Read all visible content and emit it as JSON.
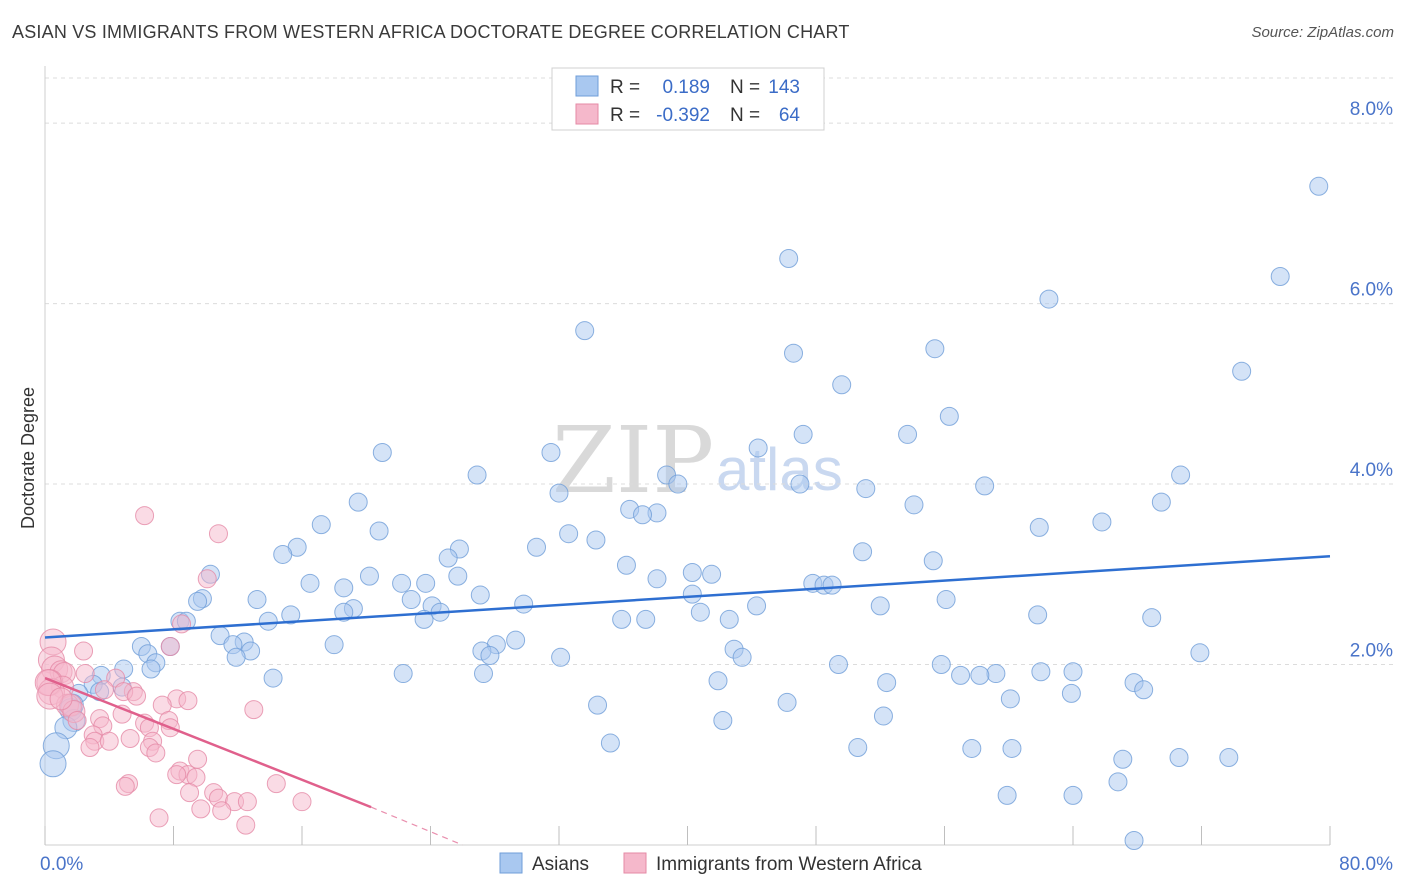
{
  "title": "ASIAN VS IMMIGRANTS FROM WESTERN AFRICA DOCTORATE DEGREE CORRELATION CHART",
  "source": "Source: ZipAtlas.com",
  "watermark": {
    "zip": "ZIP",
    "atlas": "atlas"
  },
  "chart_data": {
    "type": "scatter",
    "ylabel": "Doctorate Degree",
    "xlabel": "",
    "xlim": [
      0,
      80
    ],
    "ylim": [
      0,
      8.5
    ],
    "x_tick_labels": [
      {
        "value": 0,
        "label": "0.0%"
      },
      {
        "value": 80,
        "label": "80.0%"
      }
    ],
    "y_tick_labels": [
      {
        "value": 2,
        "label": "2.0%"
      },
      {
        "value": 4,
        "label": "4.0%"
      },
      {
        "value": 6,
        "label": "6.0%"
      },
      {
        "value": 8,
        "label": "8.0%"
      }
    ],
    "legend_top": [
      {
        "r_label": "R =",
        "r_value": "0.189",
        "n_label": "N =",
        "n_value": "143",
        "color": "#a9c8f0"
      },
      {
        "r_label": "R =",
        "r_value": "-0.392",
        "n_label": "N =",
        "n_value": "64",
        "color": "#f5b8cb"
      }
    ],
    "series": [
      {
        "name": "Asians",
        "color": "#a9c8f0",
        "stroke": "#6f9ed8",
        "trend": {
          "x": [
            0,
            80
          ],
          "y": [
            2.3,
            3.2
          ],
          "color": "#2e6fd1"
        },
        "points": [
          [
            79.3,
            7.3
          ],
          [
            76.9,
            6.3
          ],
          [
            46.3,
            6.5
          ],
          [
            62.5,
            6.05
          ],
          [
            33.6,
            5.7
          ],
          [
            46.6,
            5.45
          ],
          [
            55.4,
            5.5
          ],
          [
            74.5,
            5.25
          ],
          [
            49.6,
            5.1
          ],
          [
            56.3,
            4.75
          ],
          [
            47.2,
            4.55
          ],
          [
            53.7,
            4.55
          ],
          [
            44.4,
            4.4
          ],
          [
            21.0,
            4.35
          ],
          [
            31.5,
            4.35
          ],
          [
            26.9,
            4.1
          ],
          [
            38.7,
            4.1
          ],
          [
            39.4,
            4.0
          ],
          [
            47.0,
            4.0
          ],
          [
            51.1,
            3.95
          ],
          [
            58.5,
            3.98
          ],
          [
            32.0,
            3.9
          ],
          [
            70.7,
            4.1
          ],
          [
            19.5,
            3.8
          ],
          [
            54.1,
            3.77
          ],
          [
            69.5,
            3.8
          ],
          [
            36.4,
            3.72
          ],
          [
            38.1,
            3.68
          ],
          [
            37.2,
            3.66
          ],
          [
            17.2,
            3.55
          ],
          [
            65.8,
            3.58
          ],
          [
            20.8,
            3.48
          ],
          [
            61.9,
            3.52
          ],
          [
            32.6,
            3.45
          ],
          [
            34.3,
            3.38
          ],
          [
            15.7,
            3.3
          ],
          [
            14.8,
            3.22
          ],
          [
            25.8,
            3.28
          ],
          [
            30.6,
            3.3
          ],
          [
            50.9,
            3.25
          ],
          [
            25.1,
            3.18
          ],
          [
            36.2,
            3.1
          ],
          [
            55.3,
            3.15
          ],
          [
            10.3,
            3.0
          ],
          [
            25.7,
            2.98
          ],
          [
            40.3,
            3.02
          ],
          [
            41.5,
            3.0
          ],
          [
            38.1,
            2.95
          ],
          [
            20.2,
            2.98
          ],
          [
            22.2,
            2.9
          ],
          [
            23.7,
            2.9
          ],
          [
            16.5,
            2.9
          ],
          [
            47.8,
            2.9
          ],
          [
            48.5,
            2.88
          ],
          [
            49.0,
            2.88
          ],
          [
            18.6,
            2.85
          ],
          [
            27.1,
            2.77
          ],
          [
            9.8,
            2.73
          ],
          [
            13.2,
            2.72
          ],
          [
            22.8,
            2.72
          ],
          [
            24.1,
            2.65
          ],
          [
            40.3,
            2.78
          ],
          [
            9.5,
            2.7
          ],
          [
            29.8,
            2.67
          ],
          [
            44.3,
            2.65
          ],
          [
            56.1,
            2.72
          ],
          [
            52.0,
            2.65
          ],
          [
            19.2,
            2.62
          ],
          [
            18.6,
            2.58
          ],
          [
            15.3,
            2.55
          ],
          [
            13.9,
            2.48
          ],
          [
            23.6,
            2.5
          ],
          [
            24.6,
            2.58
          ],
          [
            40.8,
            2.58
          ],
          [
            61.8,
            2.55
          ],
          [
            68.9,
            2.52
          ],
          [
            35.9,
            2.5
          ],
          [
            37.4,
            2.5
          ],
          [
            42.6,
            2.5
          ],
          [
            8.4,
            2.48
          ],
          [
            8.8,
            2.48
          ],
          [
            10.9,
            2.32
          ],
          [
            12.4,
            2.25
          ],
          [
            11.7,
            2.22
          ],
          [
            18.0,
            2.22
          ],
          [
            29.3,
            2.27
          ],
          [
            28.1,
            2.22
          ],
          [
            6.0,
            2.2
          ],
          [
            7.8,
            2.2
          ],
          [
            27.2,
            2.15
          ],
          [
            42.9,
            2.17
          ],
          [
            12.8,
            2.15
          ],
          [
            71.9,
            2.13
          ],
          [
            6.4,
            2.12
          ],
          [
            27.7,
            2.1
          ],
          [
            11.9,
            2.08
          ],
          [
            43.4,
            2.08
          ],
          [
            32.1,
            2.08
          ],
          [
            6.9,
            2.02
          ],
          [
            49.4,
            2.0
          ],
          [
            55.8,
            2.0
          ],
          [
            4.9,
            1.95
          ],
          [
            6.6,
            1.95
          ],
          [
            22.3,
            1.9
          ],
          [
            27.3,
            1.9
          ],
          [
            59.2,
            1.9
          ],
          [
            62.0,
            1.92
          ],
          [
            64.0,
            1.92
          ],
          [
            58.2,
            1.88
          ],
          [
            57.0,
            1.88
          ],
          [
            3.5,
            1.88
          ],
          [
            14.2,
            1.85
          ],
          [
            41.9,
            1.82
          ],
          [
            52.4,
            1.8
          ],
          [
            67.8,
            1.8
          ],
          [
            3.0,
            1.78
          ],
          [
            4.8,
            1.75
          ],
          [
            68.4,
            1.72
          ],
          [
            63.9,
            1.68
          ],
          [
            3.4,
            1.7
          ],
          [
            2.1,
            1.68
          ],
          [
            60.1,
            1.62
          ],
          [
            46.2,
            1.58
          ],
          [
            34.4,
            1.55
          ],
          [
            1.7,
            1.55
          ],
          [
            1.6,
            1.5
          ],
          [
            52.2,
            1.43
          ],
          [
            42.2,
            1.38
          ],
          [
            1.8,
            1.38
          ],
          [
            1.3,
            1.3
          ],
          [
            35.2,
            1.13
          ],
          [
            0.7,
            1.1
          ],
          [
            50.6,
            1.08
          ],
          [
            57.7,
            1.07
          ],
          [
            60.2,
            1.07
          ],
          [
            67.1,
            0.95
          ],
          [
            70.6,
            0.97
          ],
          [
            73.7,
            0.97
          ],
          [
            66.8,
            0.7
          ],
          [
            59.9,
            0.55
          ],
          [
            64.0,
            0.55
          ],
          [
            67.8,
            0.05
          ],
          [
            0.5,
            0.9
          ]
        ]
      },
      {
        "name": "Immigrants from Western Africa",
        "color": "#f5b8cb",
        "stroke": "#e58aa6",
        "trend": {
          "x": [
            0,
            20.3
          ],
          "y": [
            1.85,
            0.42
          ],
          "dash_to": {
            "x": 26.0,
            "y": 0.0
          },
          "color": "#e0608c"
        },
        "points": [
          [
            6.2,
            3.65
          ],
          [
            10.8,
            3.45
          ],
          [
            10.1,
            2.95
          ],
          [
            7.8,
            2.2
          ],
          [
            8.5,
            2.45
          ],
          [
            0.5,
            2.25
          ],
          [
            2.4,
            2.15
          ],
          [
            0.4,
            2.05
          ],
          [
            0.6,
            1.95
          ],
          [
            1.0,
            1.92
          ],
          [
            1.2,
            1.9
          ],
          [
            2.5,
            1.9
          ],
          [
            4.4,
            1.85
          ],
          [
            0.3,
            1.8
          ],
          [
            1.1,
            1.75
          ],
          [
            3.7,
            1.72
          ],
          [
            0.4,
            1.7
          ],
          [
            5.5,
            1.7
          ],
          [
            4.9,
            1.7
          ],
          [
            5.7,
            1.65
          ],
          [
            8.2,
            1.62
          ],
          [
            8.9,
            1.6
          ],
          [
            1.4,
            1.55
          ],
          [
            1.6,
            1.55
          ],
          [
            7.3,
            1.55
          ],
          [
            13.0,
            1.5
          ],
          [
            1.8,
            1.48
          ],
          [
            4.8,
            1.45
          ],
          [
            3.4,
            1.4
          ],
          [
            2.0,
            1.38
          ],
          [
            7.7,
            1.38
          ],
          [
            6.2,
            1.35
          ],
          [
            3.6,
            1.32
          ],
          [
            6.5,
            1.3
          ],
          [
            7.8,
            1.3
          ],
          [
            3.0,
            1.22
          ],
          [
            5.3,
            1.18
          ],
          [
            3.1,
            1.15
          ],
          [
            4.0,
            1.15
          ],
          [
            6.7,
            1.15
          ],
          [
            6.5,
            1.08
          ],
          [
            2.8,
            1.08
          ],
          [
            6.9,
            1.02
          ],
          [
            9.5,
            0.95
          ],
          [
            8.4,
            0.82
          ],
          [
            8.9,
            0.78
          ],
          [
            9.4,
            0.75
          ],
          [
            8.2,
            0.78
          ],
          [
            5.2,
            0.68
          ],
          [
            5.0,
            0.65
          ],
          [
            14.4,
            0.68
          ],
          [
            10.5,
            0.58
          ],
          [
            9.0,
            0.58
          ],
          [
            10.8,
            0.52
          ],
          [
            11.8,
            0.48
          ],
          [
            12.6,
            0.48
          ],
          [
            16.0,
            0.48
          ],
          [
            9.7,
            0.4
          ],
          [
            11.0,
            0.38
          ],
          [
            7.1,
            0.3
          ],
          [
            12.5,
            0.22
          ],
          [
            0.2,
            1.8
          ],
          [
            0.3,
            1.65
          ],
          [
            1.0,
            1.62
          ]
        ]
      }
    ]
  },
  "legend_bottom": [
    {
      "label": "Asians",
      "color": "#a9c8f0"
    },
    {
      "label": "Immigrants from Western Africa",
      "color": "#f5b8cb"
    }
  ]
}
